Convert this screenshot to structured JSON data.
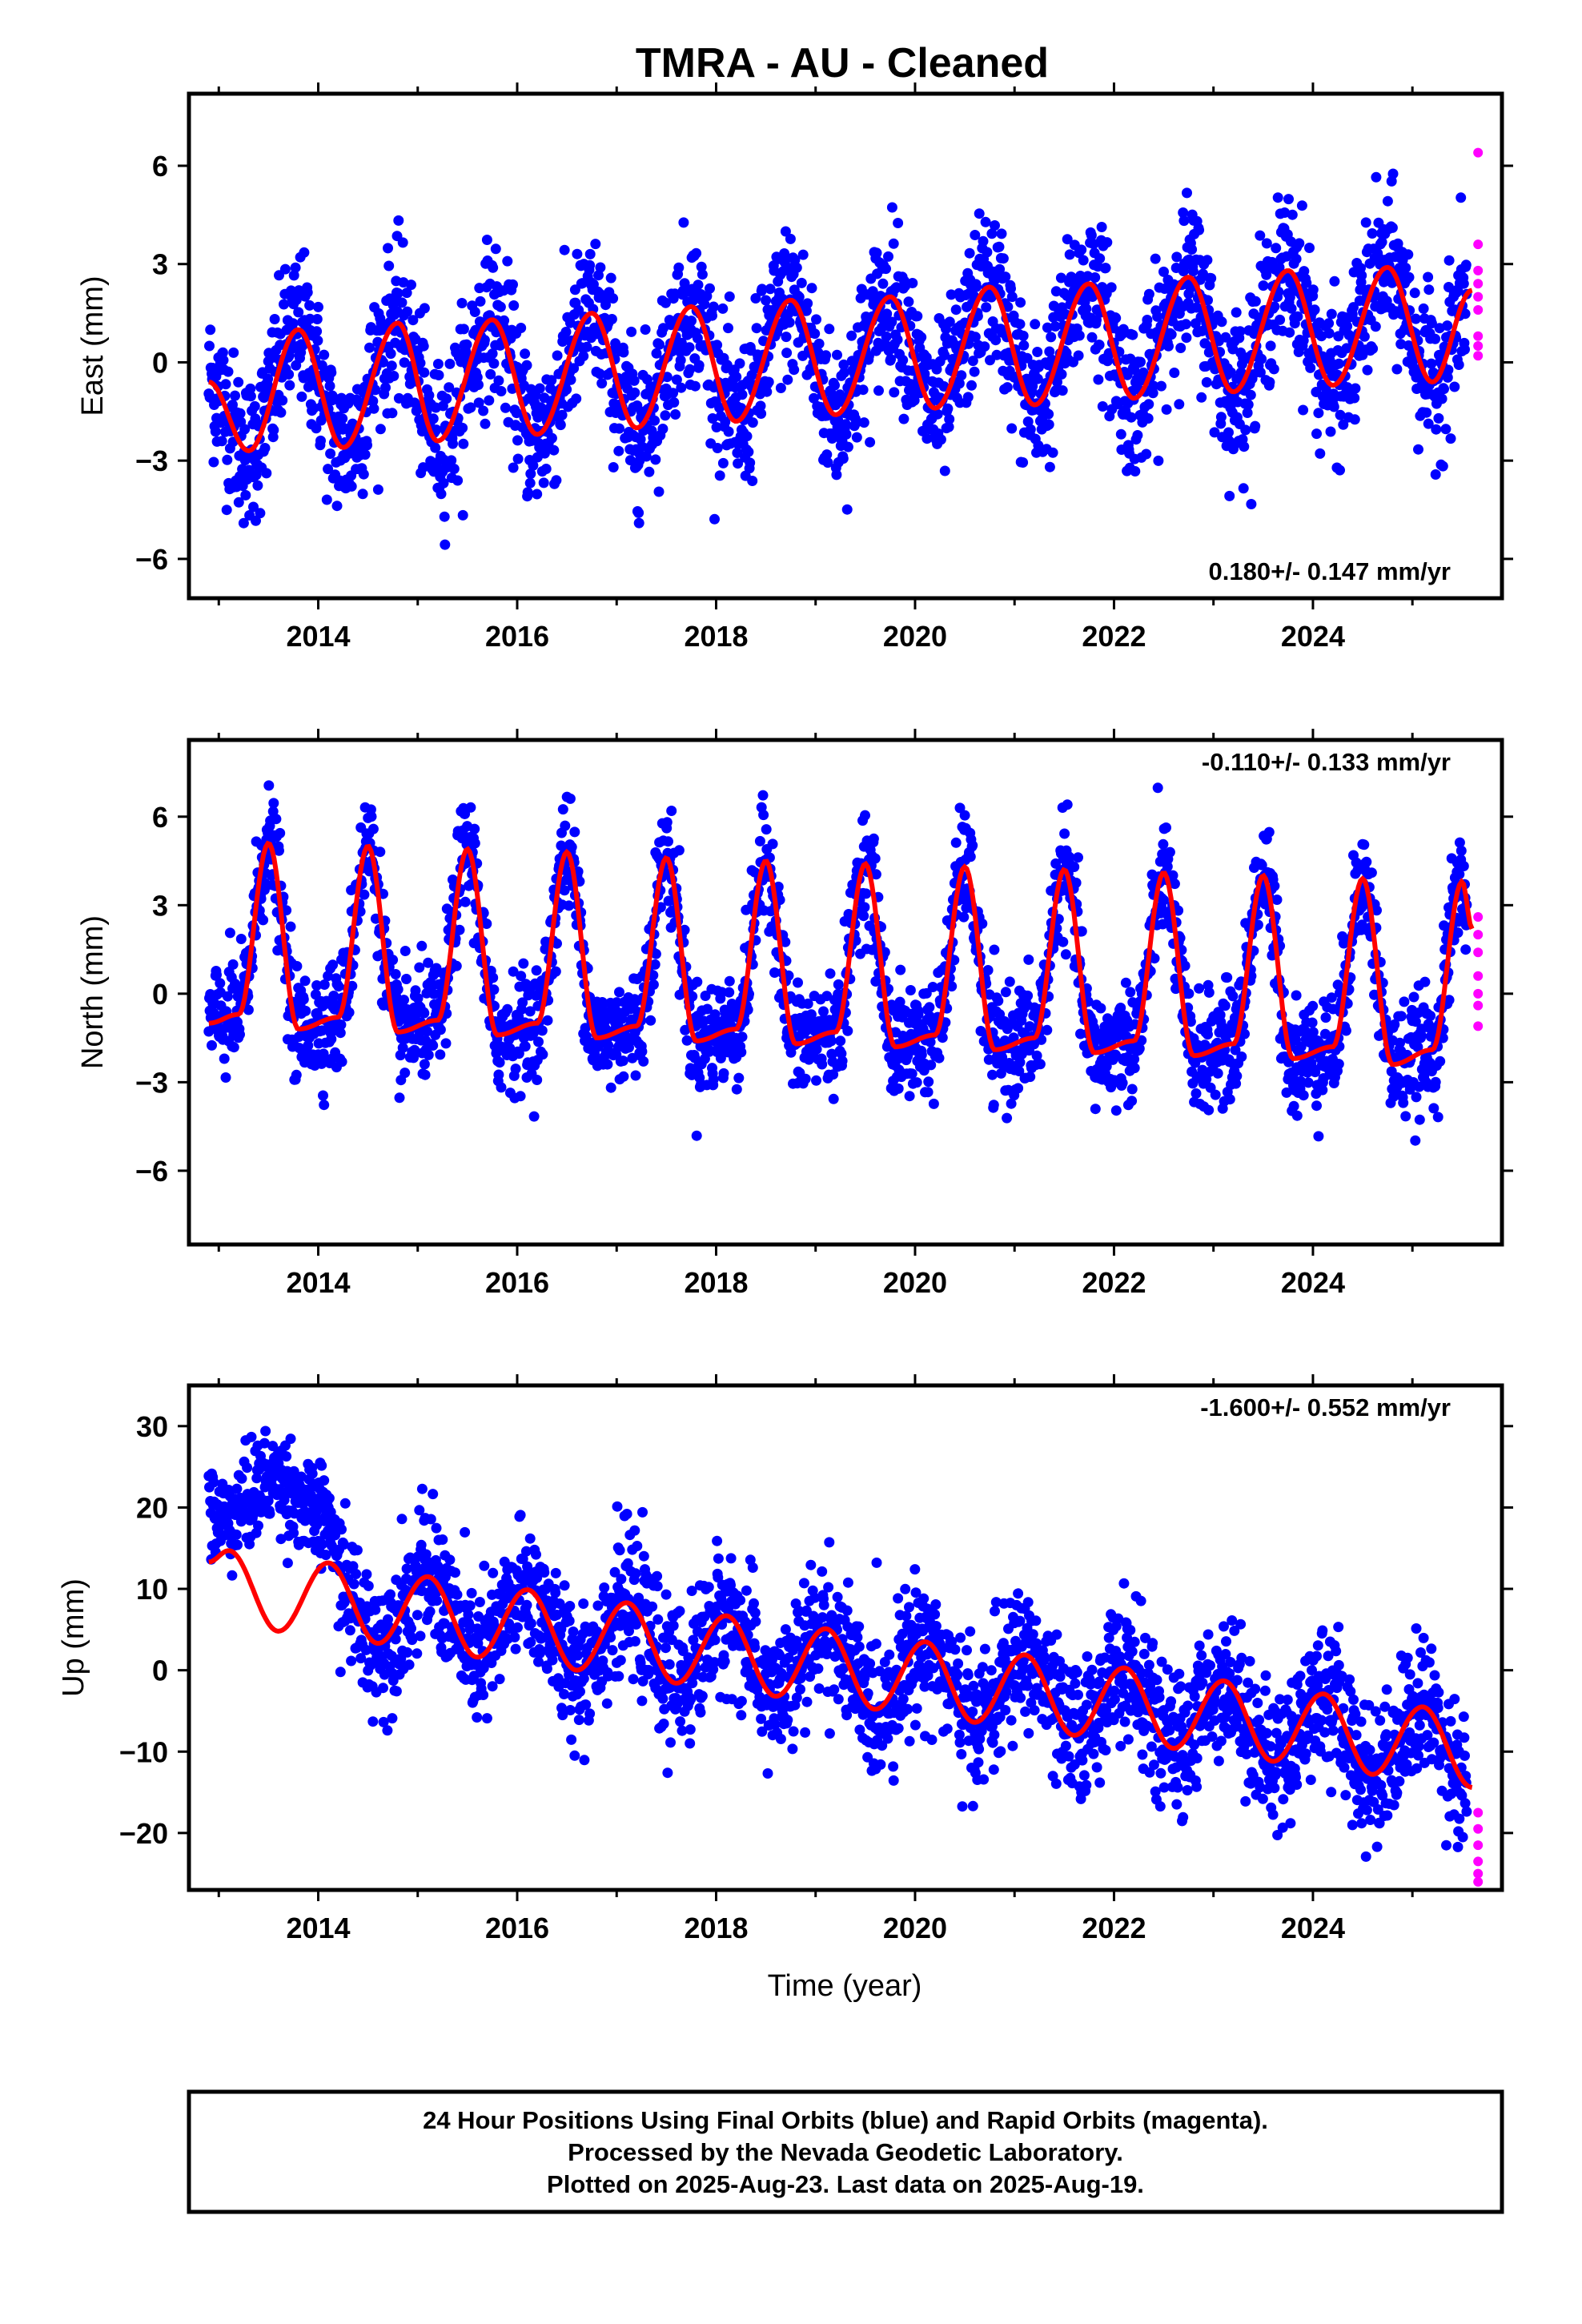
{
  "title": "TMRA  - AU - Cleaned",
  "xlabel": "Time (year)",
  "footer": {
    "line1": "24 Hour Positions Using Final Orbits (blue) and Rapid Orbits (magenta).",
    "line2": "Processed by the Nevada Geodetic Laboratory.",
    "line3": "Plotted on 2025-Aug-23. Last data on 2025-Aug-19."
  },
  "colors": {
    "final": "#0000ff",
    "rapid": "#ff00ff",
    "model": "#ff0000"
  },
  "chart_data": [
    {
      "type": "scatter",
      "name": "east",
      "ylabel": "East (mm)",
      "rate": "0.180+/- 0.147 mm/yr",
      "xlim": [
        2012.7,
        2025.9
      ],
      "ylim": [
        -7.2,
        8.2
      ],
      "xticks": [
        2014,
        2016,
        2018,
        2020,
        2022,
        2024
      ],
      "yticks": [
        6,
        3,
        0,
        -3,
        -6
      ],
      "model": {
        "offset": -0.95,
        "trend": 0.18,
        "t0": 2013.0,
        "annual_amp": 1.9,
        "annual_peak": 2013.79,
        "curve_x": [
          2012.9,
          2013.3,
          2013.8,
          2014.25,
          2014.8,
          2015.2,
          2015.75,
          2016.2,
          2016.75,
          2017.2,
          2017.75,
          2018.2,
          2018.75,
          2019.2,
          2019.75,
          2020.2,
          2020.75,
          2021.2,
          2021.75,
          2022.2,
          2022.75,
          2023.2,
          2023.75,
          2024.2,
          2024.75,
          2025.2,
          2025.6
        ],
        "curve_y": [
          -0.6,
          -2.7,
          1.0,
          -2.6,
          1.2,
          -2.4,
          1.3,
          -2.2,
          1.5,
          -2.0,
          1.7,
          -1.8,
          1.9,
          -1.6,
          2.0,
          -1.4,
          2.3,
          -1.3,
          2.4,
          -1.1,
          2.6,
          -0.9,
          2.8,
          -0.7,
          2.9,
          -0.6,
          2.2
        ]
      },
      "noise_sd": 1.15,
      "rapid_points": {
        "x": 2025.6,
        "y": [
          6.4,
          3.6,
          2.8,
          2.4,
          2.0,
          1.6,
          0.8,
          0.5,
          0.2
        ]
      }
    },
    {
      "type": "scatter",
      "name": "north",
      "ylabel": "North (mm)",
      "rate": "-0.110+/- 0.133 mm/yr",
      "xlim": [
        2012.7,
        2025.9
      ],
      "ylim": [
        -8.5,
        8.6
      ],
      "xticks": [
        2014,
        2016,
        2018,
        2020,
        2022,
        2024
      ],
      "yticks": [
        6,
        3,
        0,
        -3,
        -6
      ],
      "model": {
        "offset": -0.1,
        "trend": -0.11,
        "t0": 2013.0,
        "curve_x": [
          2012.9,
          2013.2,
          2013.5,
          2013.8,
          2014.2,
          2014.5,
          2014.8,
          2015.2,
          2015.5,
          2015.8,
          2016.2,
          2016.5,
          2016.8,
          2017.2,
          2017.5,
          2017.8,
          2018.2,
          2018.5,
          2018.8,
          2019.2,
          2019.5,
          2019.8,
          2020.2,
          2020.5,
          2020.8,
          2021.2,
          2021.5,
          2021.8,
          2022.2,
          2022.5,
          2022.8,
          2023.2,
          2023.5,
          2023.8,
          2024.2,
          2024.5,
          2024.8,
          2025.2,
          2025.5,
          2025.6
        ],
        "curve_y": [
          -1.0,
          -0.7,
          5.1,
          -1.2,
          -0.8,
          5.0,
          -1.3,
          -0.9,
          4.9,
          -1.4,
          -1.0,
          4.8,
          -1.5,
          -1.1,
          4.6,
          -1.6,
          -1.2,
          4.5,
          -1.7,
          -1.3,
          4.4,
          -1.8,
          -1.4,
          4.3,
          -1.9,
          -1.5,
          4.2,
          -2.0,
          -1.6,
          4.1,
          -2.1,
          -1.7,
          4.0,
          -2.2,
          -1.8,
          3.9,
          -2.4,
          -1.9,
          3.8,
          2.2
        ]
      },
      "noise_sd": 0.95,
      "rapid_points": {
        "x": 2025.6,
        "y": [
          2.6,
          2.0,
          1.4,
          0.6,
          0.0,
          -0.4,
          -1.1
        ]
      }
    },
    {
      "type": "scatter",
      "name": "up",
      "ylabel": "Up (mm)",
      "rate": "-1.600+/- 0.552 mm/yr",
      "xlim": [
        2012.7,
        2025.9
      ],
      "ylim": [
        -27,
        35
      ],
      "xticks": [
        2014,
        2016,
        2018,
        2020,
        2022,
        2024
      ],
      "yticks": [
        30,
        20,
        10,
        0,
        -10,
        -20
      ],
      "model": {
        "offset": 13.3,
        "trend": -1.6,
        "t0": 2013.0,
        "curve_x": [
          2012.9,
          2013.1,
          2013.6,
          2014.1,
          2014.6,
          2015.1,
          2015.6,
          2016.1,
          2016.6,
          2017.1,
          2017.6,
          2018.1,
          2018.6,
          2019.1,
          2019.6,
          2020.1,
          2020.6,
          2021.1,
          2021.6,
          2022.1,
          2022.6,
          2023.1,
          2023.6,
          2024.1,
          2024.6,
          2025.1,
          2025.6
        ],
        "curve_y": [
          13.3,
          14.7,
          4.8,
          13.2,
          3.3,
          11.5,
          1.6,
          9.9,
          0.0,
          8.3,
          -1.6,
          6.7,
          -3.2,
          5.1,
          -4.8,
          3.5,
          -6.4,
          1.9,
          -8.0,
          0.3,
          -9.6,
          -1.3,
          -11.2,
          -2.9,
          -12.8,
          -4.5,
          -14.4
        ]
      },
      "noise_sd": 4.2,
      "rapid_points": {
        "x": 2025.6,
        "y": [
          -17.5,
          -19.5,
          -21.5,
          -23.5,
          -25.0,
          -26.0
        ]
      }
    }
  ]
}
